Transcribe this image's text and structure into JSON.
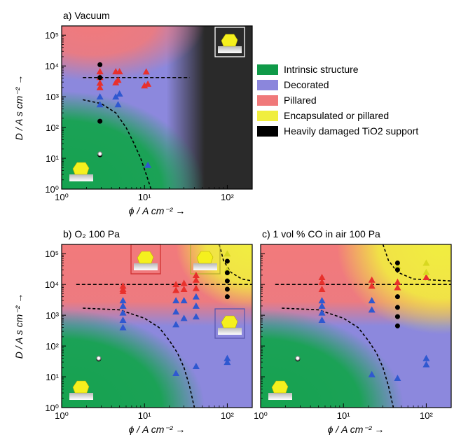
{
  "chart_data": [
    {
      "id": "a",
      "type": "scatter",
      "title": "a) Vacuum",
      "xscale": "log",
      "yscale": "log",
      "xlim": [
        1,
        200
      ],
      "ylim": [
        1,
        200000
      ],
      "xlabel": "ϕ / A cm⁻² →",
      "ylabel": "D / A s cm⁻² →",
      "show_xlabel": true,
      "show_ylabel": true,
      "xticks": [
        {
          "v": 1,
          "label": "10⁰"
        },
        {
          "v": 10,
          "label": "10¹"
        },
        {
          "v": 100,
          "label": "10²"
        }
      ],
      "yticks": [
        {
          "v": 1,
          "label": "10⁰"
        },
        {
          "v": 10,
          "label": "10¹"
        },
        {
          "v": 100,
          "label": "10²"
        },
        {
          "v": 1000,
          "label": "10³"
        },
        {
          "v": 10000,
          "label": "10⁴"
        },
        {
          "v": 100000,
          "label": "10⁵"
        }
      ],
      "hline": {
        "y": 4200,
        "x_from": 1.8,
        "x_to": 35
      },
      "curve": [
        [
          1.8,
          800
        ],
        [
          3,
          600
        ],
        [
          4.5,
          300
        ],
        [
          6,
          100
        ],
        [
          7.5,
          30
        ],
        [
          9,
          10
        ],
        [
          10.5,
          3
        ],
        [
          12,
          1
        ]
      ],
      "regions": "vacuum",
      "series": [
        {
          "name": "Intrinsic structure",
          "marker": "triangle",
          "color": "#2f58d0",
          "points": [
            [
              2.9,
              1000
            ],
            [
              2.9,
              560
            ],
            [
              4.5,
              1000
            ],
            [
              5.0,
              1250
            ],
            [
              4.8,
              560
            ],
            [
              11.0,
              6
            ]
          ]
        },
        {
          "name": "Pillared",
          "marker": "triangle",
          "color": "#e8302c",
          "points": [
            [
              2.9,
              6600
            ],
            [
              2.9,
              4300
            ],
            [
              2.9,
              2800
            ],
            [
              2.9,
              2000
            ],
            [
              4.5,
              6600
            ],
            [
              5.0,
              6600
            ],
            [
              4.5,
              2900
            ],
            [
              4.8,
              3500
            ],
            [
              10.5,
              6500
            ],
            [
              10.0,
              2300
            ],
            [
              11.0,
              2600
            ]
          ]
        },
        {
          "name": "Heavily damaged TiO2 support",
          "marker": "circle",
          "color": "#000000",
          "points": [
            [
              2.9,
              11000
            ],
            [
              2.9,
              4200
            ],
            [
              2.9,
              160
            ],
            [
              2.9,
              13
            ]
          ]
        },
        {
          "name": "Intrinsic open",
          "marker": "ring",
          "color": "#000000",
          "points": [
            [
              2.9,
              14
            ]
          ]
        }
      ]
    },
    {
      "id": "b",
      "type": "scatter",
      "title": "b) O₂ 100 Pa",
      "xscale": "log",
      "yscale": "log",
      "xlim": [
        1,
        200
      ],
      "ylim": [
        1,
        200000
      ],
      "xlabel": "ϕ / A cm⁻² →",
      "ylabel": "D / A s cm⁻² →",
      "show_xlabel": true,
      "show_ylabel": true,
      "xticks": [
        {
          "v": 1,
          "label": "10⁰"
        },
        {
          "v": 10,
          "label": "10¹"
        },
        {
          "v": 100,
          "label": "10²"
        }
      ],
      "yticks": [
        {
          "v": 1,
          "label": "10⁰"
        },
        {
          "v": 10,
          "label": "10¹"
        },
        {
          "v": 100,
          "label": "10²"
        },
        {
          "v": 1000,
          "label": "10³"
        },
        {
          "v": 10000,
          "label": "10⁴"
        },
        {
          "v": 100000,
          "label": "10⁵"
        }
      ],
      "hline": {
        "y": 10000,
        "x_from": 1.5,
        "x_to": 200
      },
      "curve": [
        [
          1.8,
          1700
        ],
        [
          5,
          1500
        ],
        [
          10,
          800
        ],
        [
          15,
          400
        ],
        [
          20,
          150
        ],
        [
          25,
          60
        ],
        [
          30,
          20
        ],
        [
          35,
          5
        ],
        [
          40,
          1
        ]
      ],
      "curve2": [
        [
          80,
          200000
        ],
        [
          90,
          60000
        ],
        [
          110,
          25000
        ],
        [
          150,
          15000
        ],
        [
          200,
          13000
        ]
      ],
      "regions": "o2",
      "series": [
        {
          "name": "Decorated",
          "marker": "triangle",
          "color": "#2f58d0",
          "points": [
            [
              5.5,
              3000
            ],
            [
              5.5,
              2000
            ],
            [
              5.5,
              1200
            ],
            [
              5.5,
              700
            ],
            [
              5.5,
              400
            ],
            [
              24,
              3000
            ],
            [
              24,
              1300
            ],
            [
              24,
              500
            ],
            [
              24,
              13
            ],
            [
              30,
              3000
            ],
            [
              30,
              800
            ],
            [
              42,
              4000
            ],
            [
              42,
              2000
            ],
            [
              42,
              900
            ],
            [
              42,
              22
            ],
            [
              100,
              40
            ],
            [
              100,
              30
            ]
          ]
        },
        {
          "name": "Pillared",
          "marker": "triangle",
          "color": "#e8302c",
          "points": [
            [
              5.5,
              9000
            ],
            [
              5.5,
              7000
            ],
            [
              5.5,
              6000
            ],
            [
              24,
              10000
            ],
            [
              24,
              6500
            ],
            [
              30,
              11000
            ],
            [
              30,
              7000
            ],
            [
              42,
              20000
            ],
            [
              42,
              14000
            ],
            [
              42,
              7500
            ]
          ]
        },
        {
          "name": "Encapsulated or pillared",
          "marker": "triangle",
          "color": "#d8d820",
          "points": [
            [
              100,
              100000
            ],
            [
              100,
              30000
            ]
          ]
        },
        {
          "name": "Heavily damaged TiO2 support",
          "marker": "circle",
          "color": "#000000",
          "points": [
            [
              100,
              57000
            ],
            [
              100,
              24000
            ],
            [
              100,
              13000
            ],
            [
              100,
              7000
            ],
            [
              100,
              4000
            ],
            [
              2.8,
              38
            ]
          ]
        },
        {
          "name": "Intrinsic open",
          "marker": "ring",
          "color": "#000000",
          "points": [
            [
              2.8,
              40
            ]
          ]
        }
      ]
    },
    {
      "id": "c",
      "type": "scatter",
      "title": "c) 1 vol % CO in air 100 Pa",
      "xscale": "log",
      "yscale": "log",
      "xlim": [
        1,
        200
      ],
      "ylim": [
        1,
        200000
      ],
      "xlabel": "ϕ / A cm⁻² →",
      "ylabel": "",
      "show_xlabel": true,
      "show_ylabel": false,
      "xticks": [
        {
          "v": 1,
          "label": "10⁰"
        },
        {
          "v": 10,
          "label": "10¹"
        },
        {
          "v": 100,
          "label": "10²"
        }
      ],
      "yticks": [
        {
          "v": 1,
          "label": ""
        },
        {
          "v": 10,
          "label": ""
        },
        {
          "v": 100,
          "label": ""
        },
        {
          "v": 1000,
          "label": ""
        },
        {
          "v": 10000,
          "label": ""
        },
        {
          "v": 100000,
          "label": ""
        }
      ],
      "hline": {
        "y": 10000,
        "x_from": 1.5,
        "x_to": 200
      },
      "curve": [
        [
          1.8,
          1700
        ],
        [
          5,
          1500
        ],
        [
          10,
          800
        ],
        [
          15,
          400
        ],
        [
          20,
          150
        ],
        [
          25,
          60
        ],
        [
          30,
          20
        ],
        [
          35,
          5
        ],
        [
          40,
          1
        ]
      ],
      "curve2": [
        [
          30,
          200000
        ],
        [
          35,
          60000
        ],
        [
          45,
          25000
        ],
        [
          70,
          15000
        ],
        [
          200,
          13000
        ]
      ],
      "regions": "co",
      "series": [
        {
          "name": "Decorated",
          "marker": "triangle",
          "color": "#2f58d0",
          "points": [
            [
              5.5,
              3000
            ],
            [
              5.5,
              2000
            ],
            [
              5.5,
              1200
            ],
            [
              5.5,
              700
            ],
            [
              22,
              3000
            ],
            [
              22,
              1500
            ],
            [
              22,
              12
            ],
            [
              45,
              9
            ]
          ]
        },
        {
          "name": "Pillared",
          "marker": "triangle",
          "color": "#e8302c",
          "points": [
            [
              5.5,
              17000
            ],
            [
              5.5,
              12000
            ],
            [
              5.5,
              7000
            ],
            [
              22,
              14000
            ],
            [
              22,
              9000
            ],
            [
              45,
              12000
            ],
            [
              45,
              8000
            ],
            [
              100,
              17000
            ]
          ]
        },
        {
          "name": "Encapsulated or pillared",
          "marker": "triangle",
          "color": "#d8d820",
          "points": [
            [
              45,
              40000
            ],
            [
              100,
              50000
            ],
            [
              100,
              25000
            ]
          ]
        },
        {
          "name": "Decorated high",
          "marker": "triangle",
          "color": "#2f58d0",
          "points": [
            [
              100,
              40
            ],
            [
              100,
              25
            ]
          ]
        },
        {
          "name": "Heavily damaged TiO2 support",
          "marker": "circle",
          "color": "#000000",
          "points": [
            [
              45,
              50000
            ],
            [
              45,
              30000
            ],
            [
              45,
              4000
            ],
            [
              45,
              1800
            ],
            [
              45,
              900
            ],
            [
              45,
              450
            ],
            [
              2.8,
              38
            ]
          ]
        },
        {
          "name": "Intrinsic open",
          "marker": "ring",
          "color": "#000000",
          "points": [
            [
              2.8,
              40
            ]
          ]
        }
      ]
    }
  ],
  "legend": {
    "items": [
      {
        "label": "Intrinsic structure",
        "color": "#0f9a48"
      },
      {
        "label": "Decorated",
        "color": "#8b86dc"
      },
      {
        "label": "Pillared",
        "color": "#f0797a"
      },
      {
        "label": "Encapsulated or pillared",
        "color": "#f0ee3e"
      },
      {
        "label": "Heavily damaged TiO2 support",
        "color": "#000000"
      }
    ]
  },
  "colors": {
    "green": "#15a34f",
    "blue": "#8c88dd",
    "red": "#f27a7b",
    "yellow": "#f1ee40",
    "dark": "#2a2a2a"
  }
}
